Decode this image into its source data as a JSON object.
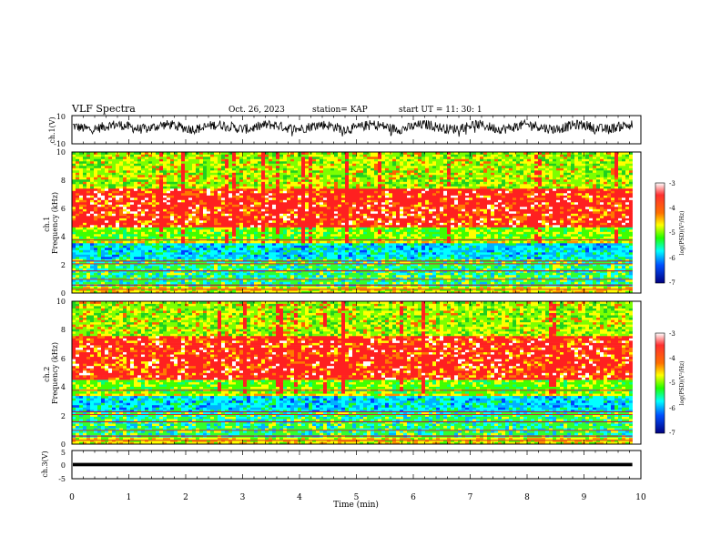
{
  "header": {
    "title": "VLF Spectra",
    "date": "Oct. 26, 2023",
    "station": "station= KAP",
    "start_ut": "start  UT =   11: 30: 1"
  },
  "chart_data": [
    {
      "type": "line",
      "panel": "ch1-waveform",
      "ylabel": "ch.1(V)",
      "ylim": [
        -10,
        10
      ],
      "yticks": [
        "10",
        "-10"
      ],
      "xlim": [
        0,
        10
      ],
      "grid": false,
      "description_values": {
        "baseline_v": 2.0,
        "fluctuation_v": 3.5
      },
      "end_min": 9.85
    },
    {
      "type": "heatmap",
      "panel": "ch1-spectrogram",
      "ylabel": "ch.1\nFrequency (kHz)",
      "ylim": [
        0,
        10
      ],
      "yticks": [
        "0",
        "2",
        "4",
        "6",
        "8",
        "10"
      ],
      "xlim": [
        0,
        10
      ],
      "end_min": 9.85,
      "bands_khz": {
        "red_band": [
          4.6,
          7.4
        ],
        "yellow_green": [
          3.7,
          4.6
        ],
        "cyan_blue": [
          2.4,
          3.6
        ],
        "green_low": [
          0.5,
          2.4
        ]
      },
      "colorbar": {
        "label": "log(PSD)(V²/Hz)",
        "ticks": [
          "-3",
          "-4",
          "-5",
          "-6",
          "-7"
        ],
        "range": [
          -7,
          -3
        ]
      }
    },
    {
      "type": "heatmap",
      "panel": "ch2-spectrogram",
      "ylabel": "ch.2\nFrequency (kHz)",
      "ylim": [
        0,
        10
      ],
      "yticks": [
        "0",
        "2",
        "4",
        "6",
        "8",
        "10"
      ],
      "xlim": [
        0,
        10
      ],
      "end_min": 9.85,
      "bands_khz": {
        "red_band": [
          4.5,
          7.6
        ],
        "yellow_green": [
          3.6,
          4.5
        ],
        "cyan_blue": [
          2.2,
          3.4
        ],
        "green_low": [
          0.5,
          2.2
        ]
      },
      "colorbar": {
        "label": "log(PSD)(V²/Hz)",
        "ticks": [
          "-3",
          "-4",
          "-5",
          "-6",
          "-7"
        ],
        "range": [
          -7,
          -3
        ]
      }
    },
    {
      "type": "line",
      "panel": "ch3-waveform",
      "ylabel": "ch.3(V)",
      "ylim": [
        -5,
        5
      ],
      "yticks": [
        "5",
        "0",
        "-5"
      ],
      "xlim": [
        0,
        10
      ],
      "values_v": {
        "band": [
          -0.6,
          0.6
        ]
      },
      "end_min": 9.85,
      "xlabel": "Time  (min)",
      "xticks": [
        "0",
        "1",
        "2",
        "3",
        "4",
        "5",
        "6",
        "7",
        "8",
        "9",
        "10"
      ]
    }
  ]
}
